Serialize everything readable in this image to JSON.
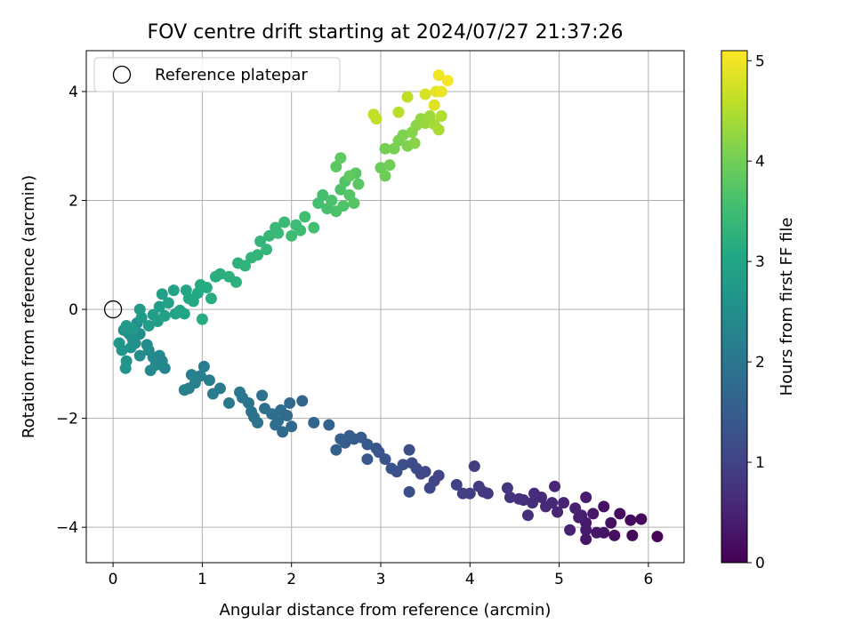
{
  "chart_data": {
    "type": "scatter",
    "title": "FOV centre drift starting at 2024/07/27 21:37:26",
    "xlabel": "Angular distance from reference (arcmin)",
    "ylabel": "Rotation from reference (arcmin)",
    "xlim": [
      -0.3,
      6.4
    ],
    "ylim": [
      -4.65,
      4.75
    ],
    "xticks": [
      0,
      1,
      2,
      3,
      4,
      5,
      6
    ],
    "yticks": [
      -4,
      -2,
      0,
      2,
      4
    ],
    "grid": true,
    "legend": {
      "placement": "top-left",
      "label": "Reference platepar"
    },
    "reference_point": {
      "x": 0,
      "y": 0
    },
    "colorbar": {
      "label": "Hours from first FF file",
      "range": [
        0,
        5.1
      ],
      "ticks": [
        0,
        1,
        2,
        3,
        4,
        5
      ],
      "colormap": "viridis"
    },
    "points": [
      {
        "x": 6.1,
        "y": -4.17,
        "h": 0.05
      },
      {
        "x": 5.92,
        "y": -3.85,
        "h": 0.1
      },
      {
        "x": 5.82,
        "y": -4.15,
        "h": 0.12
      },
      {
        "x": 5.8,
        "y": -3.87,
        "h": 0.15
      },
      {
        "x": 5.68,
        "y": -3.75,
        "h": 0.18
      },
      {
        "x": 5.62,
        "y": -4.15,
        "h": 0.2
      },
      {
        "x": 5.58,
        "y": -3.92,
        "h": 0.22
      },
      {
        "x": 5.5,
        "y": -3.62,
        "h": 0.25
      },
      {
        "x": 5.5,
        "y": -4.1,
        "h": 0.27
      },
      {
        "x": 5.42,
        "y": -4.1,
        "h": 0.3
      },
      {
        "x": 5.38,
        "y": -3.75,
        "h": 0.32
      },
      {
        "x": 5.3,
        "y": -4.22,
        "h": 0.33
      },
      {
        "x": 5.3,
        "y": -4.05,
        "h": 0.35
      },
      {
        "x": 5.3,
        "y": -3.92,
        "h": 0.37
      },
      {
        "x": 5.3,
        "y": -3.45,
        "h": 0.4
      },
      {
        "x": 5.25,
        "y": -3.78,
        "h": 0.42
      },
      {
        "x": 5.22,
        "y": -3.82,
        "h": 0.44
      },
      {
        "x": 5.18,
        "y": -3.65,
        "h": 0.46
      },
      {
        "x": 5.12,
        "y": -4.05,
        "h": 0.48
      },
      {
        "x": 5.05,
        "y": -3.55,
        "h": 0.5
      },
      {
        "x": 4.98,
        "y": -3.72,
        "h": 0.52
      },
      {
        "x": 4.95,
        "y": -3.25,
        "h": 0.55
      },
      {
        "x": 4.92,
        "y": -3.55,
        "h": 0.57
      },
      {
        "x": 4.85,
        "y": -3.62,
        "h": 0.6
      },
      {
        "x": 4.8,
        "y": -3.45,
        "h": 0.62
      },
      {
        "x": 4.72,
        "y": -3.38,
        "h": 0.64
      },
      {
        "x": 4.7,
        "y": -3.55,
        "h": 0.66
      },
      {
        "x": 4.65,
        "y": -3.78,
        "h": 0.68
      },
      {
        "x": 4.6,
        "y": -3.5,
        "h": 0.7
      },
      {
        "x": 4.55,
        "y": -3.48,
        "h": 0.72
      },
      {
        "x": 4.45,
        "y": -3.45,
        "h": 0.75
      },
      {
        "x": 4.42,
        "y": -3.28,
        "h": 0.78
      },
      {
        "x": 4.2,
        "y": -3.38,
        "h": 0.82
      },
      {
        "x": 4.15,
        "y": -3.35,
        "h": 0.85
      },
      {
        "x": 4.1,
        "y": -3.25,
        "h": 0.87
      },
      {
        "x": 4.05,
        "y": -2.88,
        "h": 0.9
      },
      {
        "x": 4.0,
        "y": -3.38,
        "h": 0.92
      },
      {
        "x": 3.92,
        "y": -3.38,
        "h": 0.95
      },
      {
        "x": 3.85,
        "y": -3.22,
        "h": 0.98
      },
      {
        "x": 3.65,
        "y": -3.05,
        "h": 1.02
      },
      {
        "x": 3.6,
        "y": -3.15,
        "h": 1.05
      },
      {
        "x": 3.55,
        "y": -3.28,
        "h": 1.08
      },
      {
        "x": 3.5,
        "y": -2.98,
        "h": 1.1
      },
      {
        "x": 3.45,
        "y": -3.02,
        "h": 1.12
      },
      {
        "x": 3.4,
        "y": -2.92,
        "h": 1.15
      },
      {
        "x": 3.35,
        "y": -2.82,
        "h": 1.18
      },
      {
        "x": 3.32,
        "y": -2.58,
        "h": 1.2
      },
      {
        "x": 3.32,
        "y": -3.35,
        "h": 1.22
      },
      {
        "x": 3.25,
        "y": -2.85,
        "h": 1.25
      },
      {
        "x": 3.18,
        "y": -2.98,
        "h": 1.28
      },
      {
        "x": 3.12,
        "y": -2.92,
        "h": 1.3
      },
      {
        "x": 3.05,
        "y": -2.75,
        "h": 1.32
      },
      {
        "x": 2.98,
        "y": -2.62,
        "h": 1.35
      },
      {
        "x": 2.95,
        "y": -2.55,
        "h": 1.37
      },
      {
        "x": 2.85,
        "y": -2.75,
        "h": 1.4
      },
      {
        "x": 2.85,
        "y": -2.48,
        "h": 1.42
      },
      {
        "x": 2.78,
        "y": -2.35,
        "h": 1.45
      },
      {
        "x": 2.7,
        "y": -2.38,
        "h": 1.47
      },
      {
        "x": 2.65,
        "y": -2.32,
        "h": 1.5
      },
      {
        "x": 2.6,
        "y": -2.45,
        "h": 1.52
      },
      {
        "x": 2.55,
        "y": -2.38,
        "h": 1.54
      },
      {
        "x": 2.5,
        "y": -2.58,
        "h": 1.56
      },
      {
        "x": 2.42,
        "y": -2.12,
        "h": 1.6
      },
      {
        "x": 2.25,
        "y": -2.08,
        "h": 1.65
      },
      {
        "x": 2.12,
        "y": -1.68,
        "h": 1.7
      },
      {
        "x": 2.0,
        "y": -2.15,
        "h": 1.72
      },
      {
        "x": 1.98,
        "y": -1.72,
        "h": 1.74
      },
      {
        "x": 1.95,
        "y": -1.95,
        "h": 1.76
      },
      {
        "x": 1.9,
        "y": -2.25,
        "h": 1.78
      },
      {
        "x": 1.88,
        "y": -1.85,
        "h": 1.8
      },
      {
        "x": 1.85,
        "y": -2.05,
        "h": 1.82
      },
      {
        "x": 1.82,
        "y": -2.12,
        "h": 1.84
      },
      {
        "x": 1.78,
        "y": -1.92,
        "h": 1.86
      },
      {
        "x": 1.7,
        "y": -1.82,
        "h": 1.88
      },
      {
        "x": 1.67,
        "y": -1.58,
        "h": 1.9
      },
      {
        "x": 1.62,
        "y": -2.08,
        "h": 1.92
      },
      {
        "x": 1.58,
        "y": -1.98,
        "h": 1.94
      },
      {
        "x": 1.55,
        "y": -1.88,
        "h": 1.96
      },
      {
        "x": 1.52,
        "y": -1.72,
        "h": 1.98
      },
      {
        "x": 1.45,
        "y": -1.62,
        "h": 2.0
      },
      {
        "x": 1.42,
        "y": -1.52,
        "h": 2.02
      },
      {
        "x": 1.3,
        "y": -1.72,
        "h": 2.05
      },
      {
        "x": 1.2,
        "y": -1.45,
        "h": 2.08
      },
      {
        "x": 1.12,
        "y": -1.55,
        "h": 2.1
      },
      {
        "x": 1.08,
        "y": -1.3,
        "h": 2.12
      },
      {
        "x": 1.02,
        "y": -1.05,
        "h": 2.14
      },
      {
        "x": 0.98,
        "y": -1.22,
        "h": 2.16
      },
      {
        "x": 0.92,
        "y": -1.35,
        "h": 2.18
      },
      {
        "x": 0.88,
        "y": -1.2,
        "h": 2.2
      },
      {
        "x": 0.85,
        "y": -1.45,
        "h": 2.22
      },
      {
        "x": 0.8,
        "y": -1.48,
        "h": 2.24
      },
      {
        "x": 0.58,
        "y": -1.08,
        "h": 2.3
      },
      {
        "x": 0.55,
        "y": -0.95,
        "h": 2.32
      },
      {
        "x": 0.52,
        "y": -0.85,
        "h": 2.34
      },
      {
        "x": 0.48,
        "y": -1.02,
        "h": 2.36
      },
      {
        "x": 0.45,
        "y": -0.88,
        "h": 2.38
      },
      {
        "x": 0.42,
        "y": -1.12,
        "h": 2.4
      },
      {
        "x": 0.4,
        "y": -0.75,
        "h": 2.42
      },
      {
        "x": 0.38,
        "y": -0.65,
        "h": 2.44
      },
      {
        "x": 0.3,
        "y": -0.85,
        "h": 2.46
      },
      {
        "x": 0.3,
        "y": -0.45,
        "h": 2.48
      },
      {
        "x": 0.27,
        "y": -0.25,
        "h": 2.5
      },
      {
        "x": 0.25,
        "y": -0.62,
        "h": 2.52
      },
      {
        "x": 0.22,
        "y": -0.55,
        "h": 2.54
      },
      {
        "x": 0.2,
        "y": -0.7,
        "h": 2.56
      },
      {
        "x": 0.18,
        "y": -0.45,
        "h": 2.58
      },
      {
        "x": 0.15,
        "y": -0.95,
        "h": 2.6
      },
      {
        "x": 0.14,
        "y": -1.08,
        "h": 2.62
      },
      {
        "x": 0.12,
        "y": -0.38,
        "h": 2.64
      },
      {
        "x": 0.1,
        "y": -0.75,
        "h": 2.66
      },
      {
        "x": 0.07,
        "y": -0.62,
        "h": 2.68
      },
      {
        "x": 0.15,
        "y": -0.3,
        "h": 2.72
      },
      {
        "x": 0.22,
        "y": -0.35,
        "h": 2.74
      },
      {
        "x": 0.32,
        "y": -0.15,
        "h": 2.76
      },
      {
        "x": 0.3,
        "y": 0.0,
        "h": 2.78
      },
      {
        "x": 0.4,
        "y": -0.3,
        "h": 2.8
      },
      {
        "x": 0.45,
        "y": -0.1,
        "h": 2.82
      },
      {
        "x": 0.5,
        "y": -0.22,
        "h": 2.84
      },
      {
        "x": 0.52,
        "y": 0.05,
        "h": 2.86
      },
      {
        "x": 0.55,
        "y": 0.28,
        "h": 2.88
      },
      {
        "x": 0.58,
        "y": -0.12,
        "h": 2.9
      },
      {
        "x": 0.62,
        "y": 0.12,
        "h": 2.92
      },
      {
        "x": 0.68,
        "y": 0.35,
        "h": 2.94
      },
      {
        "x": 0.7,
        "y": -0.08,
        "h": 2.96
      },
      {
        "x": 0.75,
        "y": -0.02,
        "h": 2.98
      },
      {
        "x": 0.8,
        "y": -0.08,
        "h": 3.0
      },
      {
        "x": 0.82,
        "y": 0.35,
        "h": 3.02
      },
      {
        "x": 0.85,
        "y": 0.2,
        "h": 3.04
      },
      {
        "x": 0.9,
        "y": 0.15,
        "h": 3.06
      },
      {
        "x": 0.95,
        "y": 0.3,
        "h": 3.08
      },
      {
        "x": 0.98,
        "y": 0.45,
        "h": 3.1
      },
      {
        "x": 1.0,
        "y": -0.18,
        "h": 3.12
      },
      {
        "x": 1.05,
        "y": 0.4,
        "h": 3.14
      },
      {
        "x": 1.1,
        "y": 0.2,
        "h": 3.16
      },
      {
        "x": 1.15,
        "y": 0.6,
        "h": 3.18
      },
      {
        "x": 1.2,
        "y": 0.65,
        "h": 3.2
      },
      {
        "x": 1.3,
        "y": 0.6,
        "h": 3.22
      },
      {
        "x": 1.38,
        "y": 0.5,
        "h": 3.24
      },
      {
        "x": 1.4,
        "y": 0.85,
        "h": 3.26
      },
      {
        "x": 1.48,
        "y": 0.8,
        "h": 3.28
      },
      {
        "x": 1.55,
        "y": 0.95,
        "h": 3.3
      },
      {
        "x": 1.62,
        "y": 1.0,
        "h": 3.32
      },
      {
        "x": 1.65,
        "y": 1.25,
        "h": 3.34
      },
      {
        "x": 1.72,
        "y": 1.1,
        "h": 3.36
      },
      {
        "x": 1.75,
        "y": 1.35,
        "h": 3.38
      },
      {
        "x": 1.82,
        "y": 1.5,
        "h": 3.4
      },
      {
        "x": 1.85,
        "y": 1.4,
        "h": 3.42
      },
      {
        "x": 1.92,
        "y": 1.6,
        "h": 3.44
      },
      {
        "x": 2.0,
        "y": 1.35,
        "h": 3.46
      },
      {
        "x": 2.05,
        "y": 1.55,
        "h": 3.48
      },
      {
        "x": 2.1,
        "y": 1.45,
        "h": 3.5
      },
      {
        "x": 2.15,
        "y": 1.7,
        "h": 3.52
      },
      {
        "x": 2.25,
        "y": 1.5,
        "h": 3.54
      },
      {
        "x": 2.3,
        "y": 1.95,
        "h": 3.56
      },
      {
        "x": 2.35,
        "y": 2.1,
        "h": 3.58
      },
      {
        "x": 2.4,
        "y": 1.85,
        "h": 3.6
      },
      {
        "x": 2.45,
        "y": 2.0,
        "h": 3.62
      },
      {
        "x": 2.5,
        "y": 1.8,
        "h": 3.64
      },
      {
        "x": 2.55,
        "y": 2.2,
        "h": 3.66
      },
      {
        "x": 2.58,
        "y": 1.9,
        "h": 3.68
      },
      {
        "x": 2.6,
        "y": 2.35,
        "h": 3.7
      },
      {
        "x": 2.65,
        "y": 2.1,
        "h": 3.72
      },
      {
        "x": 2.7,
        "y": 1.95,
        "h": 3.74
      },
      {
        "x": 2.72,
        "y": 2.5,
        "h": 3.76
      },
      {
        "x": 2.75,
        "y": 2.3,
        "h": 3.78
      },
      {
        "x": 2.5,
        "y": 2.62,
        "h": 3.8
      },
      {
        "x": 2.55,
        "y": 2.78,
        "h": 3.82
      },
      {
        "x": 2.65,
        "y": 2.45,
        "h": 3.84
      },
      {
        "x": 3.0,
        "y": 2.6,
        "h": 3.95
      },
      {
        "x": 3.05,
        "y": 2.45,
        "h": 3.97
      },
      {
        "x": 3.1,
        "y": 2.65,
        "h": 3.99
      },
      {
        "x": 3.05,
        "y": 2.95,
        "h": 4.02
      },
      {
        "x": 3.15,
        "y": 2.95,
        "h": 4.05
      },
      {
        "x": 3.2,
        "y": 3.1,
        "h": 4.08
      },
      {
        "x": 3.25,
        "y": 3.2,
        "h": 4.1
      },
      {
        "x": 3.3,
        "y": 3.0,
        "h": 4.12
      },
      {
        "x": 3.35,
        "y": 3.25,
        "h": 4.15
      },
      {
        "x": 3.38,
        "y": 3.05,
        "h": 4.18
      },
      {
        "x": 3.4,
        "y": 3.38,
        "h": 4.2
      },
      {
        "x": 3.45,
        "y": 3.5,
        "h": 4.25
      },
      {
        "x": 3.5,
        "y": 3.42,
        "h": 4.3
      },
      {
        "x": 3.55,
        "y": 3.55,
        "h": 4.35
      },
      {
        "x": 3.6,
        "y": 3.4,
        "h": 4.4
      },
      {
        "x": 3.65,
        "y": 3.3,
        "h": 4.45
      },
      {
        "x": 3.68,
        "y": 3.55,
        "h": 4.5
      },
      {
        "x": 3.2,
        "y": 3.62,
        "h": 4.55
      },
      {
        "x": 3.3,
        "y": 3.9,
        "h": 4.6
      },
      {
        "x": 2.92,
        "y": 3.58,
        "h": 4.62
      },
      {
        "x": 2.95,
        "y": 3.5,
        "h": 4.64
      },
      {
        "x": 3.5,
        "y": 3.95,
        "h": 4.8
      },
      {
        "x": 3.6,
        "y": 3.75,
        "h": 4.85
      },
      {
        "x": 3.62,
        "y": 4.0,
        "h": 4.9
      },
      {
        "x": 3.68,
        "y": 4.0,
        "h": 4.95
      },
      {
        "x": 3.65,
        "y": 4.3,
        "h": 5.0
      },
      {
        "x": 3.75,
        "y": 4.2,
        "h": 5.05
      }
    ]
  }
}
